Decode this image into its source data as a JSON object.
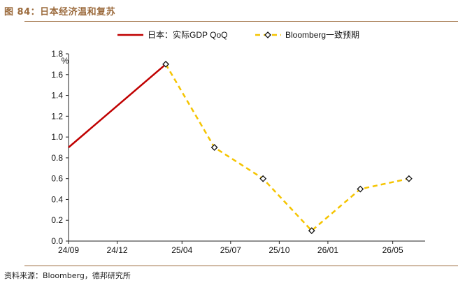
{
  "figure": {
    "title": "图 84：日本经济温和复苏",
    "source": "资料来源：Bloomberg，德邦研究所"
  },
  "chart_data": {
    "type": "line",
    "ylabel": "%",
    "ylim": [
      0.0,
      1.8
    ],
    "yticks": [
      "0.0",
      "0.2",
      "0.4",
      "0.6",
      "0.8",
      "1.0",
      "1.2",
      "1.4",
      "1.6",
      "1.8"
    ],
    "xticks": [
      "24/09",
      "24/12",
      "25/04",
      "25/07",
      "25/10",
      "26/01",
      "26/05"
    ],
    "grid": false,
    "legend_position": "top",
    "series": [
      {
        "name": "日本：实际GDP QoQ",
        "color": "#c00000",
        "style": "solid",
        "x": [
          "24/09",
          "24/12",
          "25/03"
        ],
        "values": [
          0.9,
          1.3,
          1.7
        ]
      },
      {
        "name": "Bloomberg一致预期",
        "color": "#f5c400",
        "style": "dashed",
        "marker": "diamond",
        "x": [
          "25/03",
          "25/06",
          "25/09",
          "25/12",
          "26/03",
          "26/06"
        ],
        "values": [
          1.7,
          0.9,
          0.6,
          0.1,
          0.5,
          0.6
        ]
      }
    ]
  }
}
